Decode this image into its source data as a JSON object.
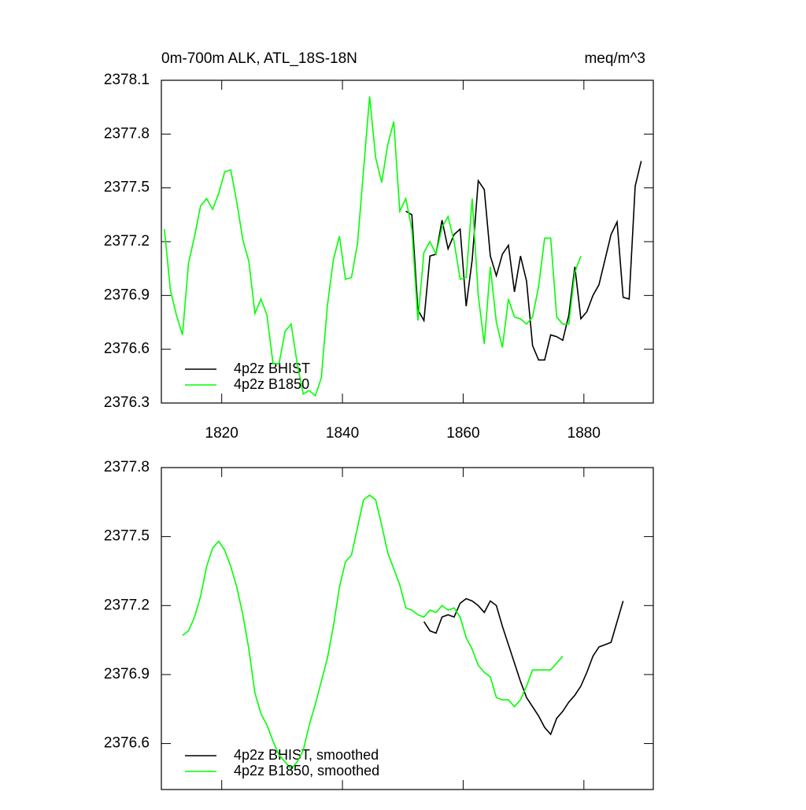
{
  "chart_data": [
    {
      "type": "line",
      "title": "0m-700m ALK, ATL_18S-18N",
      "units": "meq/m^3",
      "xlim": [
        1810,
        1891.5
      ],
      "xticks": [
        1820,
        1840,
        1860,
        1880
      ],
      "ylim": [
        2376.3,
        2378.1
      ],
      "yticks": [
        2376.3,
        2376.6,
        2376.9,
        2377.2,
        2377.5,
        2377.8,
        2378.1
      ],
      "legend": "lower left",
      "series": [
        {
          "name": "4p2z BHIST",
          "color": "#000000",
          "x": [
            1850.5,
            1851.5,
            1852.5,
            1853.5,
            1854.5,
            1855.5,
            1856.5,
            1857.5,
            1858.5,
            1859.5,
            1860.5,
            1861.5,
            1862.5,
            1863.5,
            1864.5,
            1865.5,
            1866.5,
            1867.5,
            1868.5,
            1869.5,
            1870.5,
            1871.5,
            1872.5,
            1873.5,
            1874.5,
            1875.5,
            1876.5,
            1877.5,
            1878.5,
            1879.5,
            1880.5,
            1881.5,
            1882.5,
            1883.5,
            1884.5,
            1885.5,
            1886.5,
            1887.5,
            1888.5,
            1889.5
          ],
          "values": [
            2377.37,
            2377.35,
            2376.82,
            2376.76,
            2377.12,
            2377.13,
            2377.32,
            2377.16,
            2377.24,
            2377.27,
            2376.84,
            2377.1,
            2377.54,
            2377.49,
            2377.12,
            2377.01,
            2377.13,
            2377.18,
            2376.92,
            2377.12,
            2376.98,
            2376.62,
            2376.54,
            2376.54,
            2376.68,
            2376.67,
            2376.65,
            2376.79,
            2377.06,
            2376.77,
            2376.81,
            2376.9,
            2376.96,
            2377.1,
            2377.24,
            2377.31,
            2376.89,
            2376.88,
            2377.51,
            2377.65
          ]
        },
        {
          "name": "4p2z B1850",
          "color": "#00ff00",
          "x": [
            1810.5,
            1811.5,
            1812.5,
            1813.5,
            1814.5,
            1815.5,
            1816.5,
            1817.5,
            1818.5,
            1819.5,
            1820.5,
            1821.5,
            1822.5,
            1823.5,
            1824.5,
            1825.5,
            1826.5,
            1827.5,
            1828.5,
            1829.5,
            1830.5,
            1831.5,
            1832.5,
            1833.5,
            1834.5,
            1835.5,
            1836.5,
            1837.5,
            1838.5,
            1839.5,
            1840.5,
            1841.5,
            1842.5,
            1843.5,
            1844.5,
            1845.5,
            1846.5,
            1847.5,
            1848.5,
            1849.5,
            1850.5,
            1851.5,
            1852.5,
            1853.5,
            1854.5,
            1855.5,
            1856.5,
            1857.5,
            1858.5,
            1859.5,
            1860.5,
            1861.5,
            1862.5,
            1863.5,
            1864.5,
            1865.5,
            1866.5,
            1867.5,
            1868.5,
            1869.5,
            1870.5,
            1871.5,
            1872.5,
            1873.5,
            1874.5,
            1875.5,
            1876.5,
            1877.5,
            1878.5,
            1879.5
          ],
          "values": [
            2377.27,
            2376.93,
            2376.79,
            2376.68,
            2377.08,
            2377.23,
            2377.4,
            2377.44,
            2377.38,
            2377.47,
            2377.59,
            2377.6,
            2377.42,
            2377.21,
            2377.09,
            2376.8,
            2376.88,
            2376.79,
            2376.52,
            2376.52,
            2376.7,
            2376.74,
            2376.52,
            2376.35,
            2376.37,
            2376.34,
            2376.44,
            2376.84,
            2377.1,
            2377.23,
            2376.99,
            2377.0,
            2377.19,
            2377.6,
            2378.01,
            2377.67,
            2377.53,
            2377.74,
            2377.87,
            2377.37,
            2377.44,
            2377.27,
            2376.76,
            2377.14,
            2377.2,
            2377.13,
            2377.28,
            2377.34,
            2377.2,
            2376.99,
            2377.0,
            2377.44,
            2376.9,
            2376.63,
            2377.06,
            2376.75,
            2376.61,
            2376.88,
            2376.78,
            2376.77,
            2376.74,
            2376.78,
            2376.95,
            2377.22,
            2377.22,
            2376.78,
            2376.74,
            2376.74,
            2377.03,
            2377.12
          ]
        }
      ]
    },
    {
      "type": "line",
      "xtick_labels": false,
      "xlim": [
        1810,
        1891.5
      ],
      "xticks": [
        1820,
        1840,
        1860,
        1880
      ],
      "ylim": [
        2376.4,
        2377.8
      ],
      "yticks": [
        2376.6,
        2376.9,
        2377.2,
        2377.5,
        2377.8
      ],
      "legend": "lower left",
      "series": [
        {
          "name": "4p2z BHIST, smoothed",
          "color": "#000000",
          "x": [
            1853.5,
            1854.5,
            1855.5,
            1856.5,
            1857.5,
            1858.5,
            1859.5,
            1860.5,
            1861.5,
            1862.5,
            1863.5,
            1864.5,
            1865.5,
            1866.5,
            1867.5,
            1868.5,
            1869.5,
            1870.5,
            1871.5,
            1872.5,
            1873.5,
            1874.5,
            1875.5,
            1876.5,
            1877.5,
            1878.5,
            1879.5,
            1880.5,
            1881.5,
            1882.5,
            1883.5,
            1884.5,
            1885.5,
            1886.5
          ],
          "values": [
            2377.13,
            2377.09,
            2377.08,
            2377.15,
            2377.16,
            2377.15,
            2377.21,
            2377.23,
            2377.22,
            2377.2,
            2377.17,
            2377.22,
            2377.2,
            2377.11,
            2377.03,
            2376.95,
            2376.87,
            2376.8,
            2376.76,
            2376.72,
            2376.67,
            2376.64,
            2376.71,
            2376.74,
            2376.78,
            2376.81,
            2376.85,
            2376.91,
            2376.98,
            2377.02,
            2377.03,
            2377.04,
            2377.13,
            2377.22
          ]
        },
        {
          "name": "4p2z B1850, smoothed",
          "color": "#00ff00",
          "x": [
            1813.5,
            1814.5,
            1815.5,
            1816.5,
            1817.5,
            1818.5,
            1819.5,
            1820.5,
            1821.5,
            1822.5,
            1823.5,
            1824.5,
            1825.5,
            1826.5,
            1827.5,
            1828.5,
            1829.5,
            1830.5,
            1831.5,
            1832.5,
            1833.5,
            1834.5,
            1835.5,
            1836.5,
            1837.5,
            1838.5,
            1839.5,
            1840.5,
            1841.5,
            1842.5,
            1843.5,
            1844.5,
            1845.5,
            1846.5,
            1847.5,
            1848.5,
            1849.5,
            1850.5,
            1851.5,
            1852.5,
            1853.5,
            1854.5,
            1855.5,
            1856.5,
            1857.5,
            1858.5,
            1859.5,
            1860.5,
            1861.5,
            1862.5,
            1863.5,
            1864.5,
            1865.5,
            1866.5,
            1867.5,
            1868.5,
            1869.5,
            1870.5,
            1871.5,
            1872.5,
            1873.5,
            1874.5,
            1875.5,
            1876.5
          ],
          "values": [
            2377.07,
            2377.09,
            2377.15,
            2377.24,
            2377.37,
            2377.45,
            2377.48,
            2377.44,
            2377.37,
            2377.28,
            2377.16,
            2377.01,
            2376.82,
            2376.73,
            2376.68,
            2376.61,
            2376.55,
            2376.52,
            2376.49,
            2376.52,
            2376.57,
            2376.68,
            2376.77,
            2376.87,
            2376.97,
            2377.11,
            2377.28,
            2377.39,
            2377.42,
            2377.54,
            2377.66,
            2377.68,
            2377.66,
            2377.55,
            2377.43,
            2377.36,
            2377.29,
            2377.19,
            2377.18,
            2377.16,
            2377.15,
            2377.18,
            2377.17,
            2377.2,
            2377.18,
            2377.19,
            2377.15,
            2377.06,
            2377.01,
            2376.94,
            2376.91,
            2376.89,
            2376.8,
            2376.79,
            2376.79,
            2376.76,
            2376.79,
            2376.85,
            2376.92,
            2376.92,
            2376.92,
            2376.92,
            2376.95,
            2376.98
          ]
        }
      ]
    }
  ]
}
